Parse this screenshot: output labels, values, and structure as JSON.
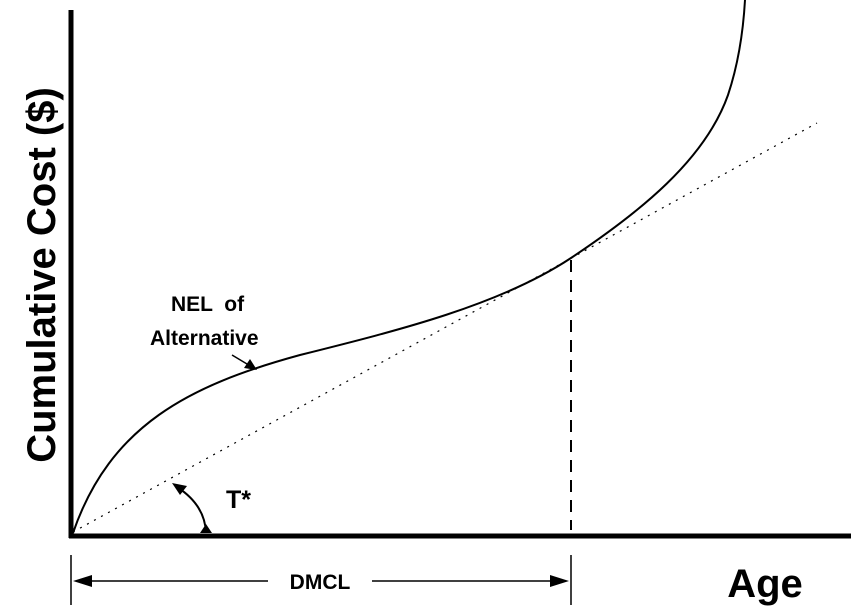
{
  "diagram": {
    "y_axis_label": "Cumulative Cost ($)",
    "x_axis_label": "Age",
    "curve_label_line1": "NEL  of",
    "curve_label_line2": "Alternative",
    "angle_label": "T*",
    "span_label": "DMCL",
    "colors": {
      "line": "#000000",
      "background": "#ffffff"
    }
  }
}
